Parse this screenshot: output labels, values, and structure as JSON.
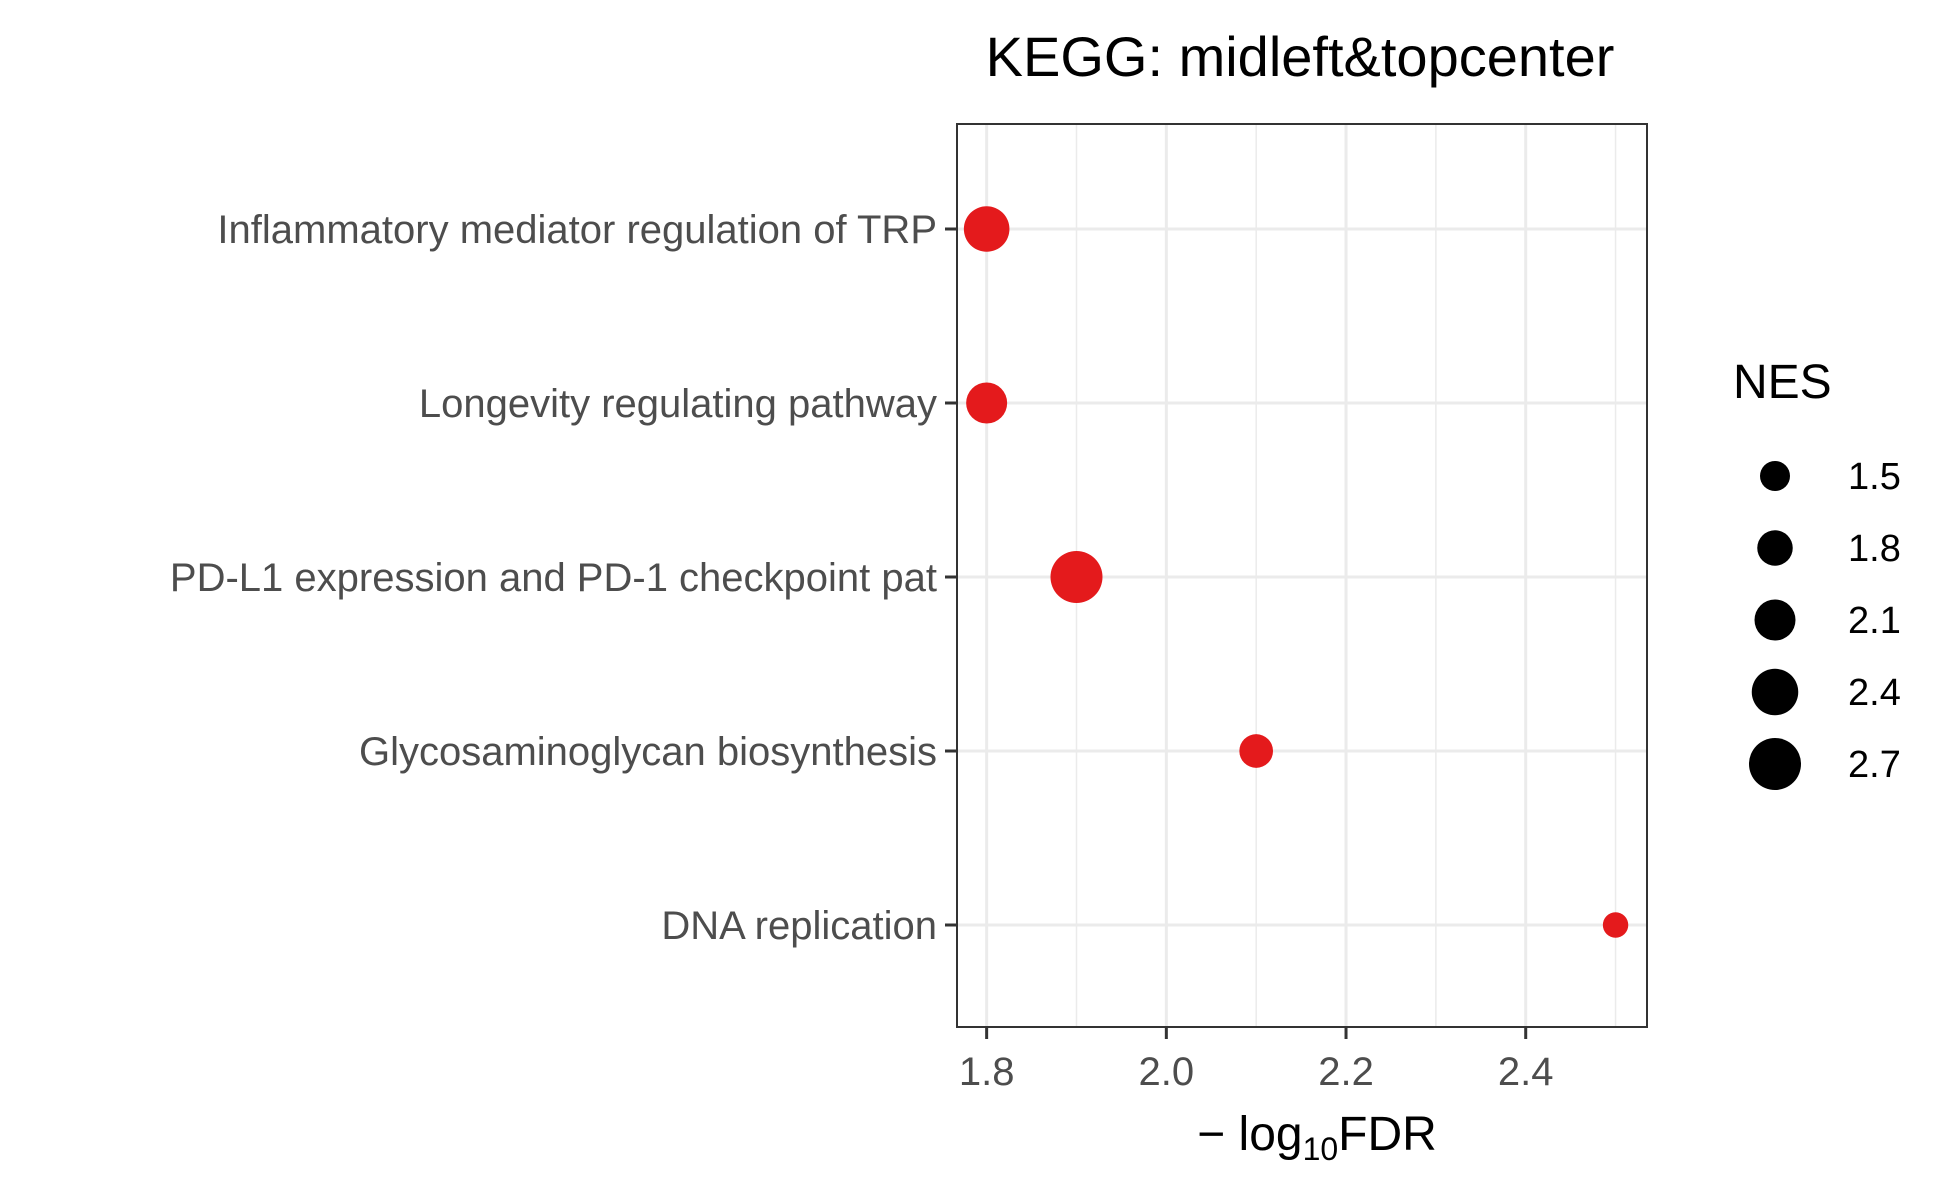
{
  "chart_data": {
    "type": "scatter",
    "title": "KEGG: midleft&topcenter",
    "xlabel": {
      "prefix": "− log",
      "subscript": "10",
      "suffix": "FDR"
    },
    "ylabel": "",
    "xlim": [
      1.767,
      2.535
    ],
    "xticks": [
      1.8,
      2.0,
      2.2,
      2.4
    ],
    "xtick_labels": [
      "1.8",
      "2.0",
      "2.2",
      "2.4"
    ],
    "grid": true,
    "categories": [
      "Inflammatory mediator regulation of TRP",
      "Longevity regulating pathway",
      "PD-L1 expression and PD-1 checkpoint pat",
      "Glycosaminoglycan biosynthesis",
      "DNA replication"
    ],
    "points": [
      {
        "category": "Inflammatory mediator regulation of TRP",
        "x": 1.8,
        "nes": 2.35
      },
      {
        "category": "Longevity regulating pathway",
        "x": 1.8,
        "nes": 2.1
      },
      {
        "category": "PD-L1 expression and PD-1 checkpoint pat",
        "x": 1.9,
        "nes": 2.7
      },
      {
        "category": "Glycosaminoglycan biosynthesis",
        "x": 2.1,
        "nes": 1.7
      },
      {
        "category": "DNA replication",
        "x": 2.5,
        "nes": 1.25
      }
    ],
    "point_color": "#e41a1c",
    "size_legend": {
      "title": "NES",
      "values": [
        1.5,
        1.8,
        2.1,
        2.4,
        2.7
      ],
      "labels": [
        "1.5",
        "1.8",
        "2.1",
        "2.4",
        "2.7"
      ],
      "placement": "right"
    }
  }
}
